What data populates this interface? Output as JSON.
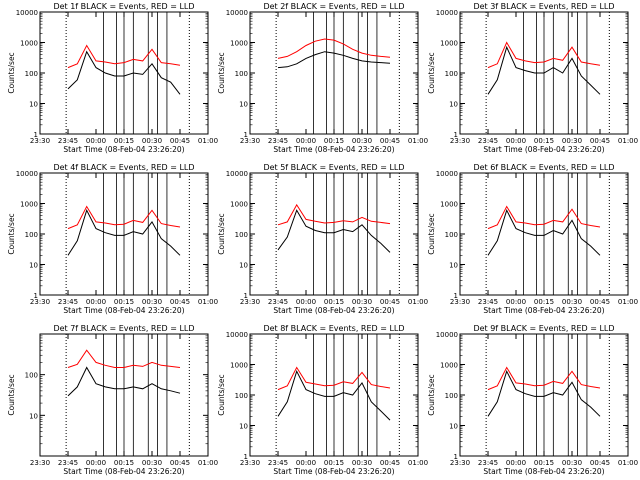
{
  "colors": {
    "events": "#000000",
    "lld": "#ff0000",
    "axes": "#000000",
    "background": "#ffffff"
  },
  "chart_data": [
    {
      "type": "line",
      "title": "Det 1f BLACK = Events, RED = LLD",
      "xlabel": "Start Time (08-Feb-04 23:26:20)",
      "ylabel": "Counts/sec",
      "y_scale": "log",
      "ylim": [
        1,
        10000
      ],
      "x_ticks": [
        "23:30",
        "23:45",
        "00:00",
        "00:15",
        "00:30",
        "00:45",
        "01:00"
      ],
      "y_ticks": [
        "1",
        "10",
        "100",
        "1000",
        "10000"
      ],
      "x": [
        "23:45",
        "23:50",
        "23:55",
        "00:00",
        "00:05",
        "00:10",
        "00:15",
        "00:20",
        "00:25",
        "00:30",
        "00:35",
        "00:40",
        "00:45"
      ],
      "series": [
        {
          "name": "Events",
          "color": "#000000",
          "values": [
            30,
            60,
            500,
            150,
            100,
            80,
            80,
            100,
            90,
            200,
            70,
            50,
            20
          ]
        },
        {
          "name": "LLD",
          "color": "#ff0000",
          "values": [
            150,
            200,
            800,
            250,
            230,
            200,
            220,
            280,
            250,
            600,
            220,
            200,
            180
          ]
        }
      ]
    },
    {
      "type": "line",
      "title": "Det 2f BLACK = Events, RED = LLD",
      "xlabel": "Start Time (08-Feb-04 23:26:20)",
      "ylabel": "Counts/sec",
      "y_scale": "log",
      "ylim": [
        1,
        10000
      ],
      "x_ticks": [
        "23:30",
        "23:45",
        "00:00",
        "00:15",
        "00:30",
        "00:45",
        "01:00"
      ],
      "y_ticks": [
        "1",
        "10",
        "100",
        "1000",
        "10000"
      ],
      "x": [
        "23:45",
        "23:50",
        "23:55",
        "00:00",
        "00:05",
        "00:10",
        "00:15",
        "00:20",
        "00:25",
        "00:30",
        "00:35",
        "00:40",
        "00:45"
      ],
      "series": [
        {
          "name": "Events",
          "color": "#000000",
          "values": [
            150,
            160,
            200,
            300,
            400,
            500,
            450,
            380,
            300,
            250,
            230,
            220,
            210
          ]
        },
        {
          "name": "LLD",
          "color": "#ff0000",
          "values": [
            300,
            350,
            500,
            800,
            1100,
            1300,
            1200,
            900,
            600,
            450,
            380,
            350,
            330
          ]
        }
      ]
    },
    {
      "type": "line",
      "title": "Det 3f BLACK = Events, RED = LLD",
      "xlabel": "Start Time (08-Feb-04 23:26:20)",
      "ylabel": "Counts/sec",
      "y_scale": "log",
      "ylim": [
        1,
        10000
      ],
      "x_ticks": [
        "23:30",
        "23:45",
        "00:00",
        "00:15",
        "00:30",
        "00:45",
        "01:00"
      ],
      "y_ticks": [
        "1",
        "10",
        "100",
        "1000",
        "10000"
      ],
      "x": [
        "23:45",
        "23:50",
        "23:55",
        "00:00",
        "00:05",
        "00:10",
        "00:15",
        "00:20",
        "00:25",
        "00:30",
        "00:35",
        "00:40",
        "00:45"
      ],
      "series": [
        {
          "name": "Events",
          "color": "#000000",
          "values": [
            20,
            60,
            700,
            150,
            120,
            100,
            100,
            150,
            100,
            300,
            80,
            40,
            20
          ]
        },
        {
          "name": "LLD",
          "color": "#ff0000",
          "values": [
            150,
            200,
            1000,
            300,
            250,
            220,
            230,
            300,
            260,
            700,
            230,
            200,
            180
          ]
        }
      ]
    },
    {
      "type": "line",
      "title": "Det 4f BLACK = Events, RED = LLD",
      "xlabel": "Start Time (08-Feb-04 23:26:20)",
      "ylabel": "Counts/sec",
      "y_scale": "log",
      "ylim": [
        1,
        10000
      ],
      "x_ticks": [
        "23:30",
        "23:45",
        "00:00",
        "00:15",
        "00:30",
        "00:45",
        "01:00"
      ],
      "y_ticks": [
        "1",
        "10",
        "100",
        "1000",
        "10000"
      ],
      "x": [
        "23:45",
        "23:50",
        "23:55",
        "00:00",
        "00:05",
        "00:10",
        "00:15",
        "00:20",
        "00:25",
        "00:30",
        "00:35",
        "00:40",
        "00:45"
      ],
      "series": [
        {
          "name": "Events",
          "color": "#000000",
          "values": [
            20,
            60,
            600,
            150,
            110,
            90,
            90,
            120,
            100,
            250,
            70,
            40,
            20
          ]
        },
        {
          "name": "LLD",
          "color": "#ff0000",
          "values": [
            150,
            200,
            800,
            250,
            230,
            200,
            210,
            280,
            240,
            600,
            220,
            190,
            170
          ]
        }
      ]
    },
    {
      "type": "line",
      "title": "Det 5f BLACK = Events, RED = LLD",
      "xlabel": "Start Time (08-Feb-04 23:26:20)",
      "ylabel": "Counts/sec",
      "y_scale": "log",
      "ylim": [
        1,
        10000
      ],
      "x_ticks": [
        "23:30",
        "23:45",
        "00:00",
        "00:15",
        "00:30",
        "00:45",
        "01:00"
      ],
      "y_ticks": [
        "1",
        "10",
        "100",
        "1000",
        "10000"
      ],
      "x": [
        "23:45",
        "23:50",
        "23:55",
        "00:00",
        "00:05",
        "00:10",
        "00:15",
        "00:20",
        "00:25",
        "00:30",
        "00:35",
        "00:40",
        "00:45"
      ],
      "series": [
        {
          "name": "Events",
          "color": "#000000",
          "values": [
            30,
            80,
            600,
            180,
            130,
            110,
            110,
            140,
            120,
            200,
            90,
            50,
            25
          ]
        },
        {
          "name": "LLD",
          "color": "#ff0000",
          "values": [
            200,
            250,
            900,
            300,
            260,
            230,
            240,
            270,
            250,
            350,
            260,
            240,
            220
          ]
        }
      ]
    },
    {
      "type": "line",
      "title": "Det 6f BLACK = Events, RED = LLD",
      "xlabel": "Start Time (08-Feb-04 23:26:20)",
      "ylabel": "Counts/sec",
      "y_scale": "log",
      "ylim": [
        1,
        10000
      ],
      "x_ticks": [
        "23:30",
        "23:45",
        "00:00",
        "00:15",
        "00:30",
        "00:45",
        "01:00"
      ],
      "y_ticks": [
        "1",
        "10",
        "100",
        "1000",
        "10000"
      ],
      "x": [
        "23:45",
        "23:50",
        "23:55",
        "00:00",
        "00:05",
        "00:10",
        "00:15",
        "00:20",
        "00:25",
        "00:30",
        "00:35",
        "00:40",
        "00:45"
      ],
      "series": [
        {
          "name": "Events",
          "color": "#000000",
          "values": [
            20,
            60,
            600,
            150,
            110,
            90,
            90,
            130,
            100,
            280,
            70,
            40,
            20
          ]
        },
        {
          "name": "LLD",
          "color": "#ff0000",
          "values": [
            150,
            200,
            800,
            250,
            230,
            200,
            210,
            280,
            250,
            650,
            220,
            190,
            170
          ]
        }
      ]
    },
    {
      "type": "line",
      "title": "Det 7f BLACK = Events, RED = LLD",
      "xlabel": "Start Time (08-Feb-04 23:26:20)",
      "ylabel": "Counts/sec",
      "y_scale": "log",
      "ylim": [
        1,
        1000
      ],
      "x_ticks": [
        "23:30",
        "23:45",
        "00:00",
        "00:15",
        "00:30",
        "00:45",
        "01:00"
      ],
      "y_ticks": [
        "10",
        "100"
      ],
      "x": [
        "23:45",
        "23:50",
        "23:55",
        "00:00",
        "00:05",
        "00:10",
        "00:15",
        "00:20",
        "00:25",
        "00:30",
        "00:35",
        "00:40",
        "00:45"
      ],
      "series": [
        {
          "name": "Events",
          "color": "#000000",
          "values": [
            30,
            50,
            150,
            60,
            50,
            45,
            45,
            50,
            45,
            60,
            45,
            40,
            35
          ]
        },
        {
          "name": "LLD",
          "color": "#ff0000",
          "values": [
            150,
            180,
            400,
            200,
            170,
            150,
            150,
            170,
            160,
            200,
            170,
            160,
            150
          ]
        }
      ]
    },
    {
      "type": "line",
      "title": "Det 8f BLACK = Events, RED = LLD",
      "xlabel": "Start Time (08-Feb-04 23:26:20)",
      "ylabel": "Counts/sec",
      "y_scale": "log",
      "ylim": [
        1,
        10000
      ],
      "x_ticks": [
        "23:30",
        "23:45",
        "00:00",
        "00:15",
        "00:30",
        "00:45",
        "01:00"
      ],
      "y_ticks": [
        "1",
        "10",
        "100",
        "1000",
        "10000"
      ],
      "x": [
        "23:45",
        "23:50",
        "23:55",
        "00:00",
        "00:05",
        "00:10",
        "00:15",
        "00:20",
        "00:25",
        "00:30",
        "00:35",
        "00:40",
        "00:45"
      ],
      "series": [
        {
          "name": "Events",
          "color": "#000000",
          "values": [
            20,
            60,
            600,
            150,
            110,
            90,
            90,
            120,
            100,
            250,
            60,
            30,
            15
          ]
        },
        {
          "name": "LLD",
          "color": "#ff0000",
          "values": [
            150,
            200,
            800,
            260,
            230,
            200,
            210,
            270,
            240,
            550,
            220,
            190,
            170
          ]
        }
      ]
    },
    {
      "type": "line",
      "title": "Det 9f BLACK = Events, RED = LLD",
      "xlabel": "Start Time (08-Feb-04 23:26:20)",
      "ylabel": "Counts/sec",
      "y_scale": "log",
      "ylim": [
        1,
        10000
      ],
      "x_ticks": [
        "23:30",
        "23:45",
        "00:00",
        "00:15",
        "00:30",
        "00:45",
        "01:00"
      ],
      "y_ticks": [
        "1",
        "10",
        "100",
        "1000",
        "10000"
      ],
      "x": [
        "23:45",
        "23:50",
        "23:55",
        "00:00",
        "00:05",
        "00:10",
        "00:15",
        "00:20",
        "00:25",
        "00:30",
        "00:35",
        "00:40",
        "00:45"
      ],
      "series": [
        {
          "name": "Events",
          "color": "#000000",
          "values": [
            20,
            60,
            600,
            150,
            110,
            90,
            90,
            120,
            100,
            260,
            70,
            40,
            20
          ]
        },
        {
          "name": "LLD",
          "color": "#ff0000",
          "values": [
            150,
            200,
            800,
            250,
            230,
            200,
            210,
            280,
            240,
            600,
            220,
            190,
            170
          ]
        }
      ]
    }
  ]
}
